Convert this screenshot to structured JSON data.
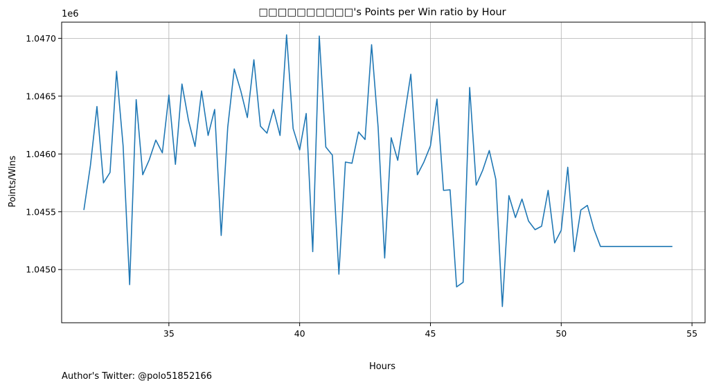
{
  "footer": {
    "note": "Author's Twitter: @polo51852166"
  },
  "colors": {
    "line": "#1f77b4",
    "grid": "#b0b0b0",
    "axes": "#000000"
  },
  "chart_data": {
    "type": "line",
    "title": "□□□□□□□□□□'s Points per Win ratio by Hour",
    "xlabel": "Hours",
    "ylabel": "Points/Wins",
    "y_offset_label": "1e6",
    "xlim": [
      30.9,
      55.5
    ],
    "ylim": [
      1044540,
      1047140
    ],
    "x_ticks": [
      35,
      40,
      45,
      50,
      55
    ],
    "y_ticks": [
      1045000,
      1045500,
      1046000,
      1046500,
      1047000
    ],
    "y_tick_labels": [
      "1.0450",
      "1.0455",
      "1.0460",
      "1.0465",
      "1.0470"
    ],
    "grid": true,
    "series": [
      {
        "x": [
          31.75,
          32.0,
          32.25,
          32.5,
          32.75,
          33.0,
          33.25,
          33.5,
          33.75,
          34.0,
          34.25,
          34.5,
          34.75,
          35.0,
          35.25,
          35.5,
          35.75,
          36.0,
          36.25,
          36.5,
          36.75,
          37.0,
          37.25,
          37.5,
          37.75,
          38.0,
          38.25,
          38.5,
          38.75,
          39.0,
          39.25,
          39.5,
          39.75,
          40.0,
          40.25,
          40.5,
          40.75,
          41.0,
          41.25,
          41.5,
          41.75,
          42.0,
          42.25,
          42.5,
          42.75,
          43.0,
          43.25,
          43.5,
          43.75,
          44.0,
          44.25,
          44.5,
          44.75,
          45.0,
          45.25,
          45.5,
          45.75,
          46.0,
          46.25,
          46.5,
          46.75,
          47.0,
          47.25,
          47.5,
          47.75,
          48.0,
          48.25,
          48.5,
          48.75,
          49.0,
          49.25,
          49.5,
          49.75,
          50.0,
          50.25,
          50.5,
          50.75,
          51.0,
          51.25,
          51.5,
          51.75,
          52.0,
          52.25,
          52.5,
          52.75,
          53.0,
          53.25,
          53.5,
          53.75,
          54.0,
          54.25
        ],
        "y": [
          1045515,
          1045900,
          1046410,
          1045750,
          1045840,
          1046715,
          1046070,
          1044870,
          1046470,
          1045820,
          1045950,
          1046120,
          1046010,
          1046510,
          1045910,
          1046605,
          1046290,
          1046065,
          1046545,
          1046160,
          1046385,
          1045295,
          1046230,
          1046735,
          1046545,
          1046315,
          1046815,
          1046240,
          1046180,
          1046385,
          1046160,
          1047030,
          1046220,
          1046035,
          1046350,
          1045155,
          1047020,
          1046060,
          1045990,
          1044960,
          1045930,
          1045920,
          1046190,
          1046125,
          1046945,
          1046230,
          1045100,
          1046140,
          1045945,
          1046320,
          1046690,
          1045820,
          1045930,
          1046070,
          1046475,
          1045685,
          1045690,
          1044850,
          1044890,
          1046575,
          1045730,
          1045860,
          1046030,
          1045780,
          1044680,
          1045640,
          1045450,
          1045610,
          1045420,
          1045345,
          1045375,
          1045685,
          1045230,
          1045340,
          1045885,
          1045155,
          1045515,
          1045555,
          1045350,
          1045200,
          1045200,
          1045200,
          1045200,
          1045200,
          1045200,
          1045200,
          1045200,
          1045200,
          1045200,
          1045200,
          1045200
        ]
      }
    ]
  }
}
